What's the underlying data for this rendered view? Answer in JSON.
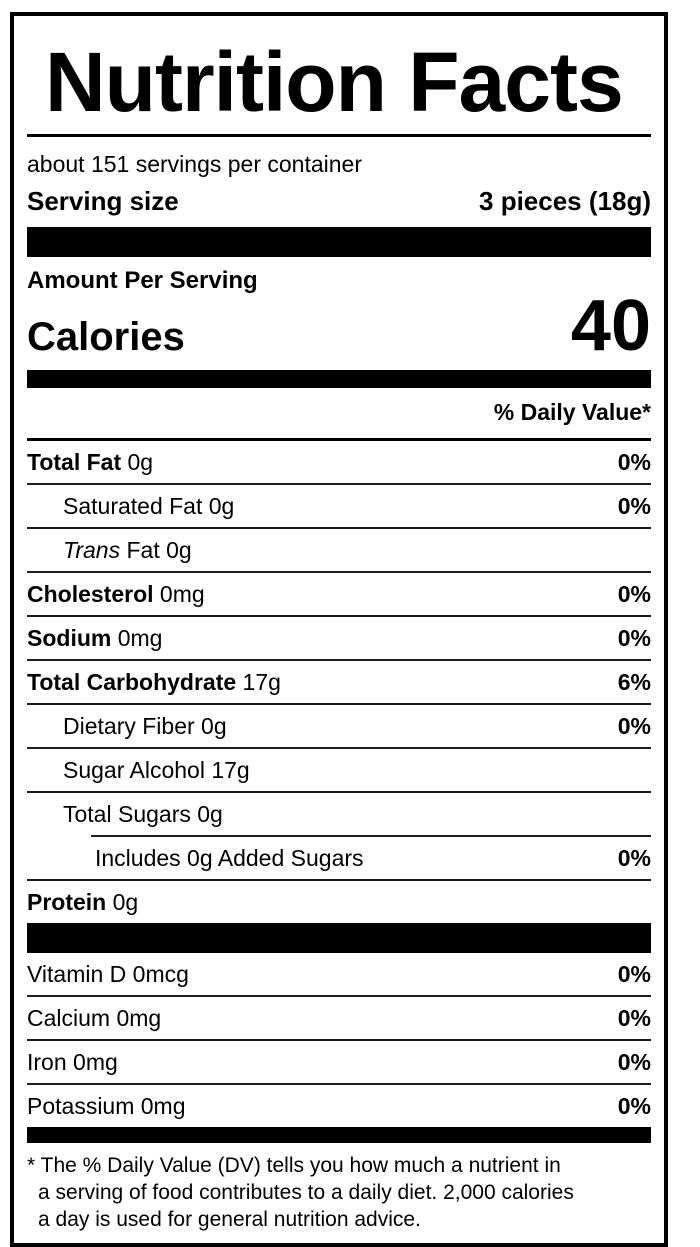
{
  "label": {
    "title": "Nutrition Facts",
    "servings_per_container": "about 151 servings per container",
    "serving_size": {
      "label": "Serving size",
      "value": "3 pieces (18g)"
    },
    "amount_per_serving": "Amount Per Serving",
    "calories": {
      "label": "Calories",
      "value": "40"
    },
    "daily_value_header": "% Daily Value*",
    "nutrients": [
      {
        "bold": "Total Fat",
        "rest": " 0g",
        "dv": "0%"
      },
      {
        "rest": "Saturated Fat 0g",
        "dv": "0%"
      },
      {
        "italic": "Trans",
        "rest": " Fat 0g",
        "dv": ""
      },
      {
        "bold": "Cholesterol",
        "rest": " 0mg",
        "dv": "0%"
      },
      {
        "bold": "Sodium",
        "rest": " 0mg",
        "dv": "0%"
      },
      {
        "bold": "Total Carbohydrate",
        "rest": " 17g",
        "dv": "6%"
      },
      {
        "rest": "Dietary Fiber 0g",
        "dv": "0%"
      },
      {
        "rest": "Sugar Alcohol 17g",
        "dv": ""
      },
      {
        "rest": "Total Sugars 0g",
        "dv": ""
      },
      {
        "rest": "Includes 0g Added Sugars",
        "dv": "0%"
      },
      {
        "bold": "Protein",
        "rest": " 0g",
        "dv": ""
      }
    ],
    "vitamins": [
      {
        "rest": "Vitamin D 0mcg",
        "dv": "0%"
      },
      {
        "rest": "Calcium 0mg",
        "dv": "0%"
      },
      {
        "rest": "Iron 0mg",
        "dv": "0%"
      },
      {
        "rest": "Potassium 0mg",
        "dv": "0%"
      }
    ],
    "footnote_lines": [
      "* The % Daily Value (DV) tells you how much a nutrient in",
      "a serving of food contributes to a daily diet. 2,000 calories",
      "a day is used for general nutrition advice."
    ],
    "colors": {
      "text": "#000000",
      "bar": "#000000",
      "rule": "#1c1c1c",
      "background": "#ffffff"
    }
  }
}
